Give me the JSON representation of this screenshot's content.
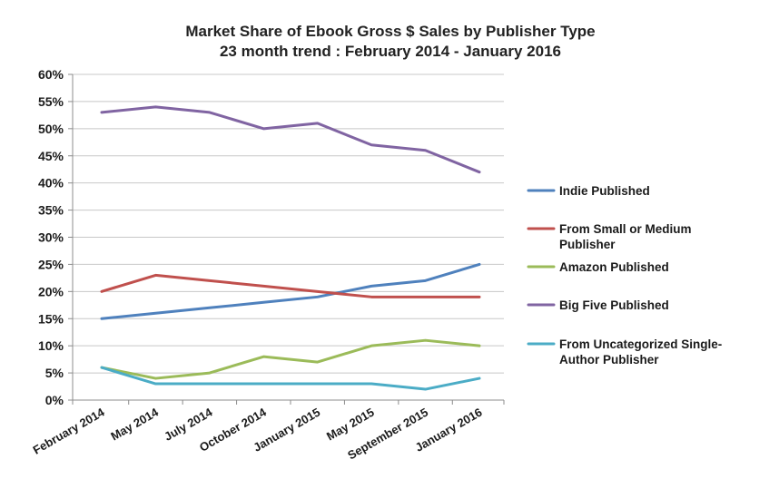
{
  "chart_data": {
    "type": "line",
    "title": "Market Share of Ebook Gross $ Sales by Publisher Type",
    "subtitle": "23 month trend : February 2014 - January 2016",
    "xlabel": "",
    "ylabel": "",
    "categories": [
      "February 2014",
      "May 2014",
      "July 2014",
      "October 2014",
      "January 2015",
      "May 2015",
      "September 2015",
      "January 2016"
    ],
    "y_ticks": [
      "0%",
      "5%",
      "10%",
      "15%",
      "20%",
      "25%",
      "30%",
      "35%",
      "40%",
      "45%",
      "50%",
      "55%",
      "60%"
    ],
    "ylim": [
      0,
      60
    ],
    "grid": true,
    "legend_position": "right",
    "series": [
      {
        "name": "Indie Published",
        "legend_lines": [
          "Indie Published"
        ],
        "color": "#4f81bd",
        "values": [
          15,
          16,
          17,
          18,
          19,
          21,
          22,
          25
        ]
      },
      {
        "name": "From Small or Medium Publisher",
        "legend_lines": [
          "From Small or Medium",
          "Publisher"
        ],
        "color": "#c0504d",
        "values": [
          20,
          23,
          22,
          21,
          20,
          19,
          19,
          19
        ]
      },
      {
        "name": "Amazon Published",
        "legend_lines": [
          "Amazon Published"
        ],
        "color": "#9bbb59",
        "values": [
          6,
          4,
          5,
          8,
          7,
          10,
          11,
          10
        ]
      },
      {
        "name": "Big Five Published",
        "legend_lines": [
          "Big Five Published"
        ],
        "color": "#8064a2",
        "values": [
          53,
          54,
          53,
          50,
          51,
          47,
          46,
          42
        ]
      },
      {
        "name": "From Uncategorized Single-Author Publisher",
        "legend_lines": [
          "From Uncategorized Single-",
          "Author Publisher"
        ],
        "color": "#4bacc6",
        "values": [
          6,
          3,
          3,
          3,
          3,
          3,
          2,
          4
        ]
      }
    ]
  }
}
